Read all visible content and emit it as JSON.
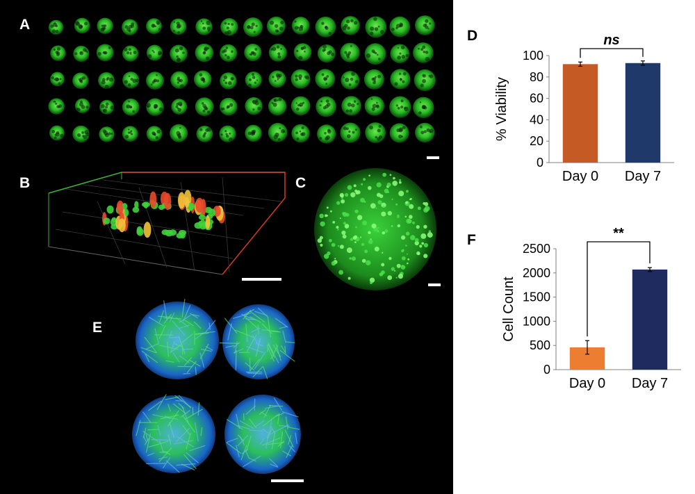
{
  "panels": {
    "A": "A",
    "B": "B",
    "C": "C",
    "D": "D",
    "E": "E",
    "F": "F"
  },
  "colors": {
    "fluorescence_green": "#2fd22a",
    "fluorescence_blue": "#1f4fe0",
    "scale_bar": "#ffffff",
    "axis_red": "#d23a2a",
    "axis_green": "#3fb23f"
  },
  "chart_data": [
    {
      "panel": "D",
      "type": "bar",
      "categories": [
        "Day 0",
        "Day 7"
      ],
      "values": [
        92,
        93
      ],
      "errors": [
        2,
        2
      ],
      "colors": [
        "#c55a25",
        "#1f3a6a"
      ],
      "title": "",
      "xlabel": "",
      "ylabel": "% Viability",
      "ylim": [
        0,
        100
      ],
      "yticks": [
        "0",
        "20",
        "40",
        "60",
        "80",
        "100"
      ],
      "significance": "ns",
      "grid": false,
      "legend": "none"
    },
    {
      "panel": "F",
      "type": "bar",
      "categories": [
        "Day 0",
        "Day 7"
      ],
      "values": [
        460,
        2070
      ],
      "errors": [
        140,
        40
      ],
      "colors": [
        "#ed7d31",
        "#1f2a5e"
      ],
      "title": "",
      "xlabel": "",
      "ylabel": "Cell Count",
      "ylim": [
        0,
        2500
      ],
      "yticks": [
        "0",
        "500",
        "1000",
        "1500",
        "2000",
        "2500"
      ],
      "significance": "**",
      "grid": false,
      "legend": "none"
    }
  ]
}
